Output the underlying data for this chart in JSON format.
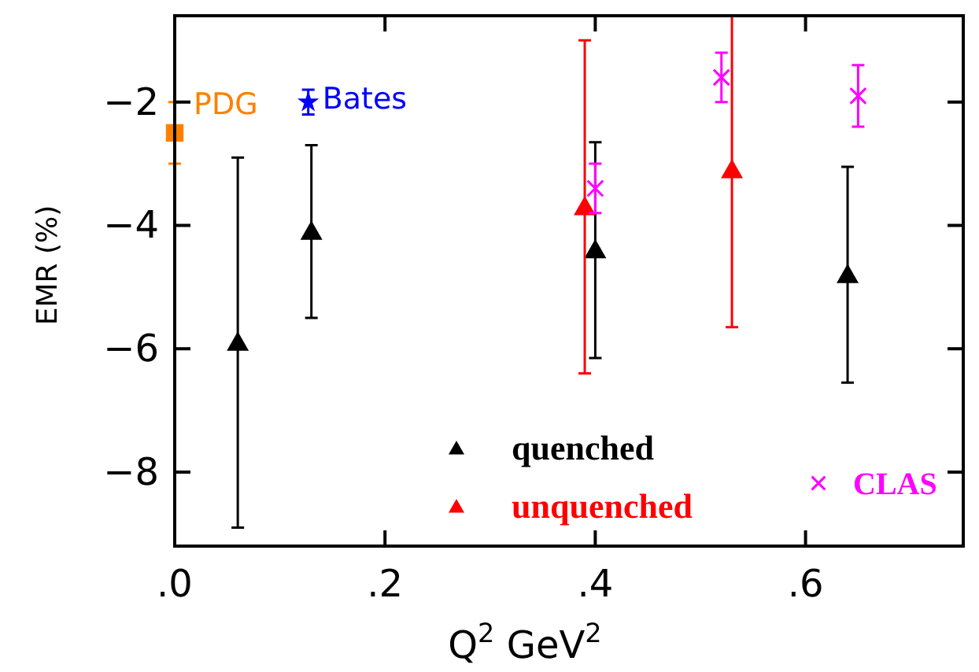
{
  "chart_data": {
    "type": "scatter",
    "xlabel": "Q$^{2}$   GeV$^{2}$",
    "ylabel": "EMR (%)",
    "xlim": [
      0,
      0.75
    ],
    "ylim": [
      -9.2,
      -0.6
    ],
    "xticks": [
      {
        "value": 0,
        "label": ".0"
      },
      {
        "value": 0.2,
        "label": ".2"
      },
      {
        "value": 0.4,
        "label": ".4"
      },
      {
        "value": 0.6,
        "label": ".6"
      }
    ],
    "yticks": [
      -2,
      -4,
      -6,
      -8
    ],
    "grid": false,
    "legend": "bottom",
    "series": [
      {
        "name": "quenched",
        "color": "#000000",
        "marker": "triangle",
        "x": [
          0.06,
          0.13,
          0.4,
          0.64
        ],
        "values": [
          -5.9,
          -4.1,
          -4.4,
          -4.8
        ],
        "errors": [
          3,
          1.4,
          1.75,
          1.75
        ]
      },
      {
        "name": "unquenched",
        "color": "#ff0000",
        "marker": "triangle",
        "x": [
          0.39,
          0.53
        ],
        "values": [
          -3.7,
          -3.1
        ],
        "errors": [
          [
            -6.4,
            -1.0
          ],
          [
            -5.65,
            -0.6
          ]
        ]
      },
      {
        "name": "CLAS",
        "color": "#ff00ff",
        "marker": "cross",
        "x": [
          0.4,
          0.52,
          0.65
        ],
        "values": [
          -3.4,
          -1.6,
          -1.9
        ],
        "errors": [
          0.4,
          0.4,
          [
            -2.4,
            -1.4
          ]
        ]
      },
      {
        "name": "PDG",
        "color": "#ff8000",
        "marker": "square",
        "x": [
          0.0
        ],
        "values": [
          -2.5
        ],
        "errors": [
          0.5
        ]
      },
      {
        "name": "Bates",
        "color": "#0000ff",
        "marker": "star",
        "x": [
          0.127
        ],
        "values": [
          -2.0
        ],
        "errors": [
          0.2
        ]
      }
    ]
  }
}
